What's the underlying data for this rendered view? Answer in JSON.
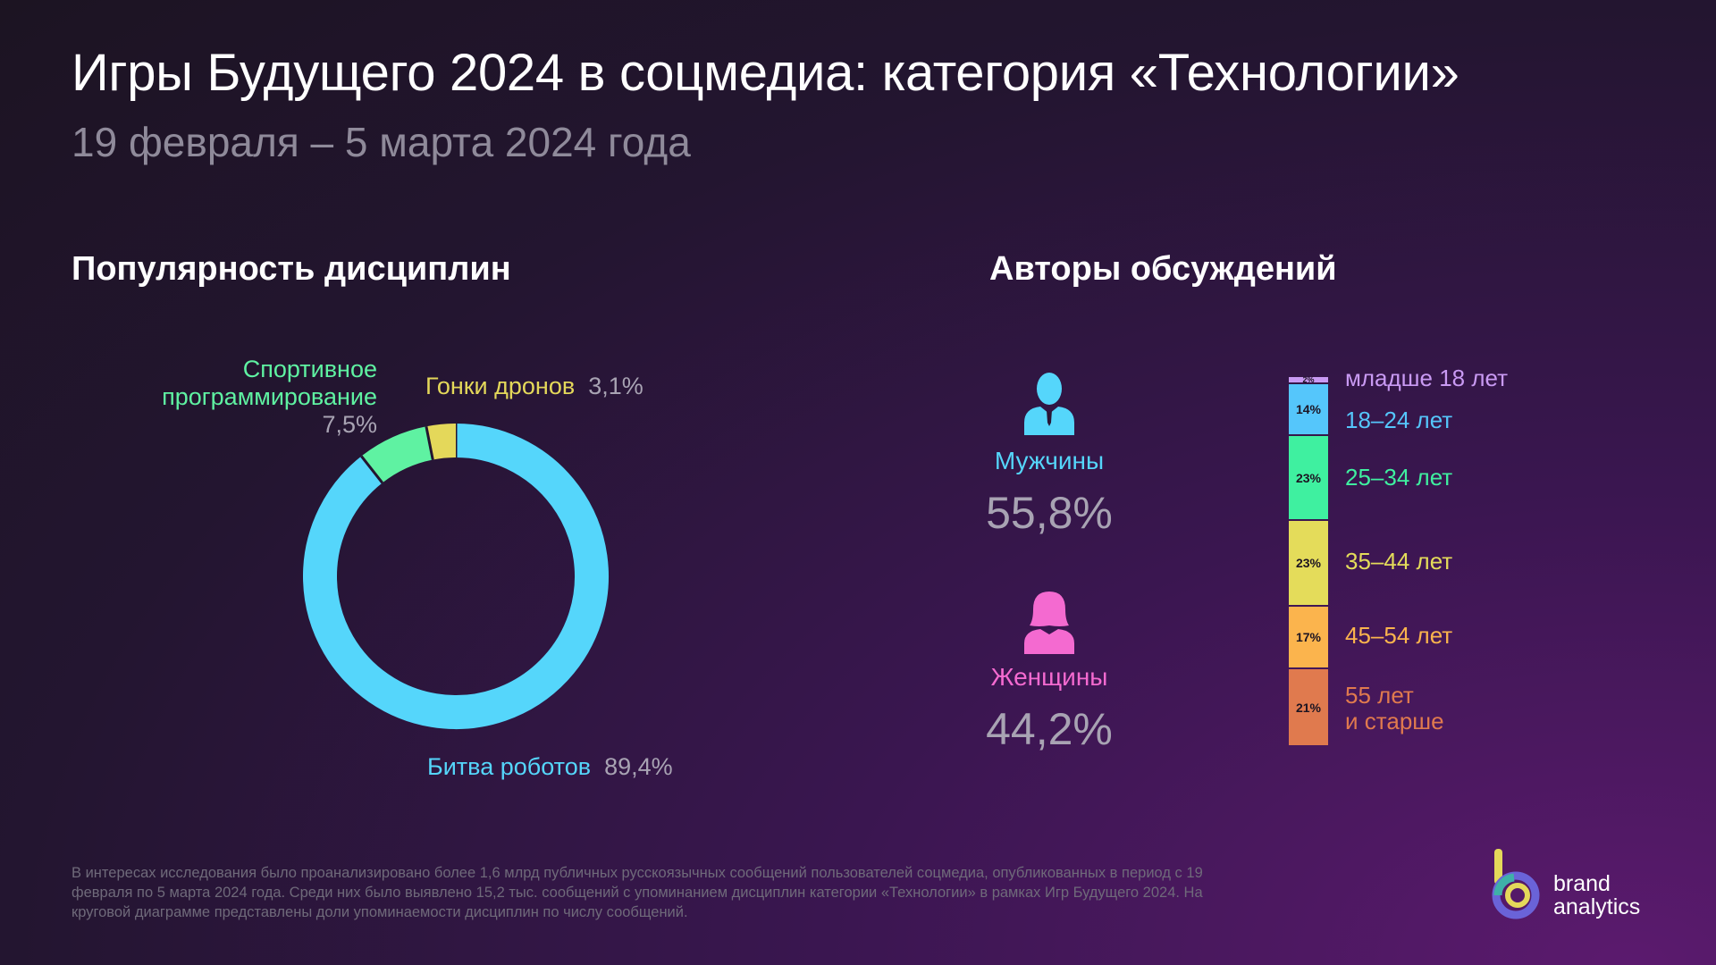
{
  "title": "Игры Будущего 2024 в соцмедиа: категория «Технологии»",
  "subtitle": "19 февраля – 5 марта 2024 года",
  "left_section_title": "Популярность дисциплин",
  "right_section_title": "Авторы обсуждений",
  "chart_data": [
    {
      "type": "pie",
      "title": "Популярность дисциплин",
      "slices": [
        {
          "label": "Битва роботов",
          "value": 89.4,
          "display": "89,4%",
          "color": "#55d6fb"
        },
        {
          "label_lines": [
            "Спортивное",
            "программирование"
          ],
          "value": 7.5,
          "display": "7,5%",
          "color": "#5ff2a2"
        },
        {
          "label": "Гонки дронов",
          "value": 3.1,
          "display": "3,1%",
          "color": "#e4d85a"
        }
      ]
    },
    {
      "type": "bar",
      "title": "Авторы обсуждений",
      "stacked": true,
      "categories": [
        "младше 18 лет",
        "18–24 лет",
        "25–34 лет",
        "35–44 лет",
        "45–54 лет",
        "55 лет и старше"
      ],
      "values": [
        2,
        14,
        23,
        23,
        17,
        21
      ],
      "labels": [
        "2%",
        "14%",
        "23%",
        "23%",
        "17%",
        "21%"
      ],
      "colors": [
        "#c99af3",
        "#55c6fb",
        "#3ff0a0",
        "#e4dc5a",
        "#fbb44d",
        "#e07a4e"
      ],
      "segment_units": [
        2,
        14,
        23,
        23,
        17,
        21
      ]
    }
  ],
  "gender": {
    "male": {
      "label": "Мужчины",
      "value": "55,8%",
      "color": "#55d6fb"
    },
    "female": {
      "label": "Женщины",
      "value": "44,2%",
      "color": "#f46ad0"
    }
  },
  "age_labels": {
    "under18": "младше 18 лет",
    "a18_24": "18–24 лет",
    "a25_34": "25–34 лет",
    "a35_44": "35–44 лет",
    "a45_54": "45–54 лет",
    "a55_line1": "55 лет",
    "a55_line2": "и старше"
  },
  "footnote": "В интересах исследования было проанализировано более 1,6 млрд публичных русскоязычных сообщений пользователей соцмедиа, опубликованных в период с 19 февраля по 5 марта 2024 года. Среди них было выявлено 15,2 тыс. сообщений с упоминанием дисциплин категории «Технологии» в рамках Игр Будущего 2024. На круговой диаграмме представлены доли упоминаемости дисциплин по числу сообщений.",
  "brand": {
    "line1": "brand",
    "line2": "analytics"
  }
}
